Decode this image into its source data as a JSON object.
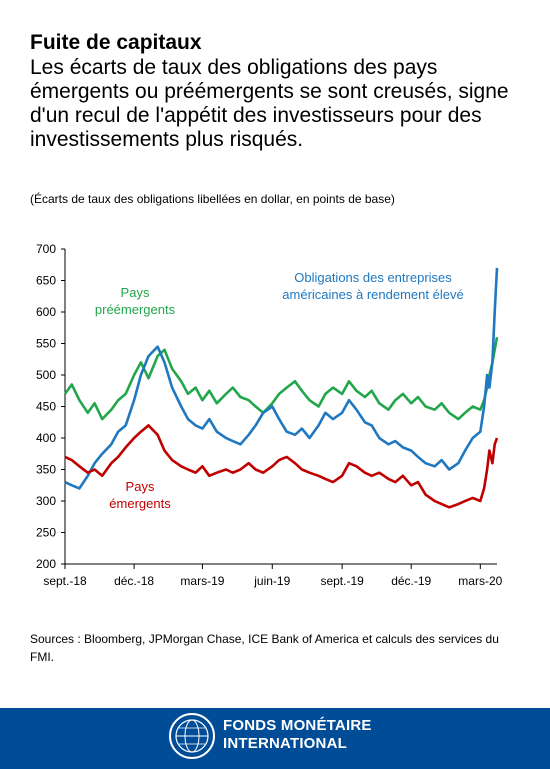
{
  "headline": "Fuite de capitaux",
  "subhead": "Les écarts de taux des obligations des pays émergents ou préémergents se sont creusés, signe d'un recul de l'appétit des investisseurs pour des investissements plus risqués.",
  "subtitle": "(Écarts de taux des obligations libellées en dollar, en points de base)",
  "source": "Sources : Bloomberg, JPMorgan Chase, ICE Bank of America et calculs des services du FMI.",
  "footer": {
    "line1": "FONDS MONÉTAIRE",
    "line2": "INTERNATIONAL"
  },
  "chart_data": {
    "type": "line",
    "ylim": [
      200,
      700
    ],
    "yticks": [
      200,
      250,
      300,
      350,
      400,
      450,
      500,
      550,
      600,
      650,
      700
    ],
    "xlim": [
      "2018-09-01",
      "2020-03-23"
    ],
    "xticks": [
      {
        "date": "2018-09-01",
        "label": "sept.-18"
      },
      {
        "date": "2018-12-01",
        "label": "déc.-18"
      },
      {
        "date": "2019-03-01",
        "label": "mars-19"
      },
      {
        "date": "2019-06-01",
        "label": "juin-19"
      },
      {
        "date": "2019-09-01",
        "label": "sept.-19"
      },
      {
        "date": "2019-12-01",
        "label": "déc.-19"
      },
      {
        "date": "2020-03-01",
        "label": "mars-20"
      }
    ],
    "colors": {
      "frontier": "#22a64b",
      "hy": "#1f78c0",
      "em": "#c00000"
    },
    "labels": {
      "frontier": [
        "Pays",
        "préémergents"
      ],
      "hy": [
        "Obligations des entreprises",
        "américaines à rendement élevé"
      ],
      "em": [
        "Pays",
        "émergents"
      ]
    },
    "series": [
      {
        "key": "frontier",
        "x": [
          "2018-09-01",
          "2018-09-10",
          "2018-09-20",
          "2018-10-01",
          "2018-10-10",
          "2018-10-20",
          "2018-11-01",
          "2018-11-10",
          "2018-11-20",
          "2018-12-01",
          "2018-12-10",
          "2018-12-20",
          "2019-01-01",
          "2019-01-10",
          "2019-01-20",
          "2019-02-01",
          "2019-02-10",
          "2019-02-20",
          "2019-03-01",
          "2019-03-10",
          "2019-03-20",
          "2019-04-01",
          "2019-04-10",
          "2019-04-20",
          "2019-05-01",
          "2019-05-10",
          "2019-05-20",
          "2019-06-01",
          "2019-06-10",
          "2019-06-20",
          "2019-07-01",
          "2019-07-10",
          "2019-07-20",
          "2019-08-01",
          "2019-08-10",
          "2019-08-20",
          "2019-09-01",
          "2019-09-10",
          "2019-09-20",
          "2019-10-01",
          "2019-10-10",
          "2019-10-20",
          "2019-11-01",
          "2019-11-10",
          "2019-11-20",
          "2019-12-01",
          "2019-12-10",
          "2019-12-20",
          "2020-01-01",
          "2020-01-10",
          "2020-01-20",
          "2020-02-01",
          "2020-02-10",
          "2020-02-20",
          "2020-03-01",
          "2020-03-06",
          "2020-03-10",
          "2020-03-13",
          "2020-03-17",
          "2020-03-20",
          "2020-03-23"
        ],
        "values": [
          470,
          485,
          460,
          440,
          455,
          430,
          445,
          460,
          470,
          500,
          520,
          495,
          530,
          540,
          510,
          490,
          470,
          480,
          460,
          475,
          455,
          470,
          480,
          465,
          460,
          450,
          440,
          455,
          470,
          480,
          490,
          475,
          460,
          450,
          470,
          480,
          470,
          490,
          475,
          465,
          475,
          455,
          445,
          460,
          470,
          455,
          465,
          450,
          445,
          455,
          440,
          430,
          440,
          450,
          445,
          460,
          480,
          500,
          520,
          540,
          560
        ]
      },
      {
        "key": "hy",
        "x": [
          "2018-09-01",
          "2018-09-10",
          "2018-09-20",
          "2018-10-01",
          "2018-10-10",
          "2018-10-20",
          "2018-11-01",
          "2018-11-10",
          "2018-11-20",
          "2018-12-01",
          "2018-12-10",
          "2018-12-20",
          "2019-01-01",
          "2019-01-10",
          "2019-01-20",
          "2019-02-01",
          "2019-02-10",
          "2019-02-20",
          "2019-03-01",
          "2019-03-10",
          "2019-03-20",
          "2019-04-01",
          "2019-04-10",
          "2019-04-20",
          "2019-05-01",
          "2019-05-10",
          "2019-05-20",
          "2019-06-01",
          "2019-06-10",
          "2019-06-20",
          "2019-07-01",
          "2019-07-10",
          "2019-07-20",
          "2019-08-01",
          "2019-08-10",
          "2019-08-20",
          "2019-09-01",
          "2019-09-10",
          "2019-09-20",
          "2019-10-01",
          "2019-10-10",
          "2019-10-20",
          "2019-11-01",
          "2019-11-10",
          "2019-11-20",
          "2019-12-01",
          "2019-12-10",
          "2019-12-20",
          "2020-01-01",
          "2020-01-10",
          "2020-01-20",
          "2020-02-01",
          "2020-02-10",
          "2020-02-20",
          "2020-03-01",
          "2020-03-06",
          "2020-03-10",
          "2020-03-13",
          "2020-03-17",
          "2020-03-20",
          "2020-03-23"
        ],
        "values": [
          330,
          325,
          320,
          340,
          360,
          375,
          390,
          410,
          420,
          460,
          500,
          530,
          545,
          520,
          480,
          450,
          430,
          420,
          415,
          430,
          410,
          400,
          395,
          390,
          405,
          420,
          440,
          450,
          430,
          410,
          405,
          415,
          400,
          420,
          440,
          430,
          440,
          460,
          445,
          425,
          420,
          400,
          390,
          395,
          385,
          380,
          370,
          360,
          355,
          365,
          350,
          360,
          380,
          400,
          410,
          450,
          500,
          480,
          520,
          600,
          670
        ]
      },
      {
        "key": "em",
        "x": [
          "2018-09-01",
          "2018-09-10",
          "2018-09-20",
          "2018-10-01",
          "2018-10-10",
          "2018-10-20",
          "2018-11-01",
          "2018-11-10",
          "2018-11-20",
          "2018-12-01",
          "2018-12-10",
          "2018-12-20",
          "2019-01-01",
          "2019-01-10",
          "2019-01-20",
          "2019-02-01",
          "2019-02-10",
          "2019-02-20",
          "2019-03-01",
          "2019-03-10",
          "2019-03-20",
          "2019-04-01",
          "2019-04-10",
          "2019-04-20",
          "2019-05-01",
          "2019-05-10",
          "2019-05-20",
          "2019-06-01",
          "2019-06-10",
          "2019-06-20",
          "2019-07-01",
          "2019-07-10",
          "2019-07-20",
          "2019-08-01",
          "2019-08-10",
          "2019-08-20",
          "2019-09-01",
          "2019-09-10",
          "2019-09-20",
          "2019-10-01",
          "2019-10-10",
          "2019-10-20",
          "2019-11-01",
          "2019-11-10",
          "2019-11-20",
          "2019-12-01",
          "2019-12-10",
          "2019-12-20",
          "2020-01-01",
          "2020-01-10",
          "2020-01-20",
          "2020-02-01",
          "2020-02-10",
          "2020-02-20",
          "2020-03-01",
          "2020-03-06",
          "2020-03-10",
          "2020-03-13",
          "2020-03-17",
          "2020-03-20",
          "2020-03-23"
        ],
        "values": [
          370,
          365,
          355,
          345,
          350,
          340,
          360,
          370,
          385,
          400,
          410,
          420,
          405,
          380,
          365,
          355,
          350,
          345,
          355,
          340,
          345,
          350,
          345,
          350,
          360,
          350,
          345,
          355,
          365,
          370,
          360,
          350,
          345,
          340,
          335,
          330,
          340,
          360,
          355,
          345,
          340,
          345,
          335,
          330,
          340,
          325,
          330,
          310,
          300,
          295,
          290,
          295,
          300,
          305,
          300,
          320,
          350,
          380,
          360,
          390,
          400
        ]
      }
    ]
  }
}
